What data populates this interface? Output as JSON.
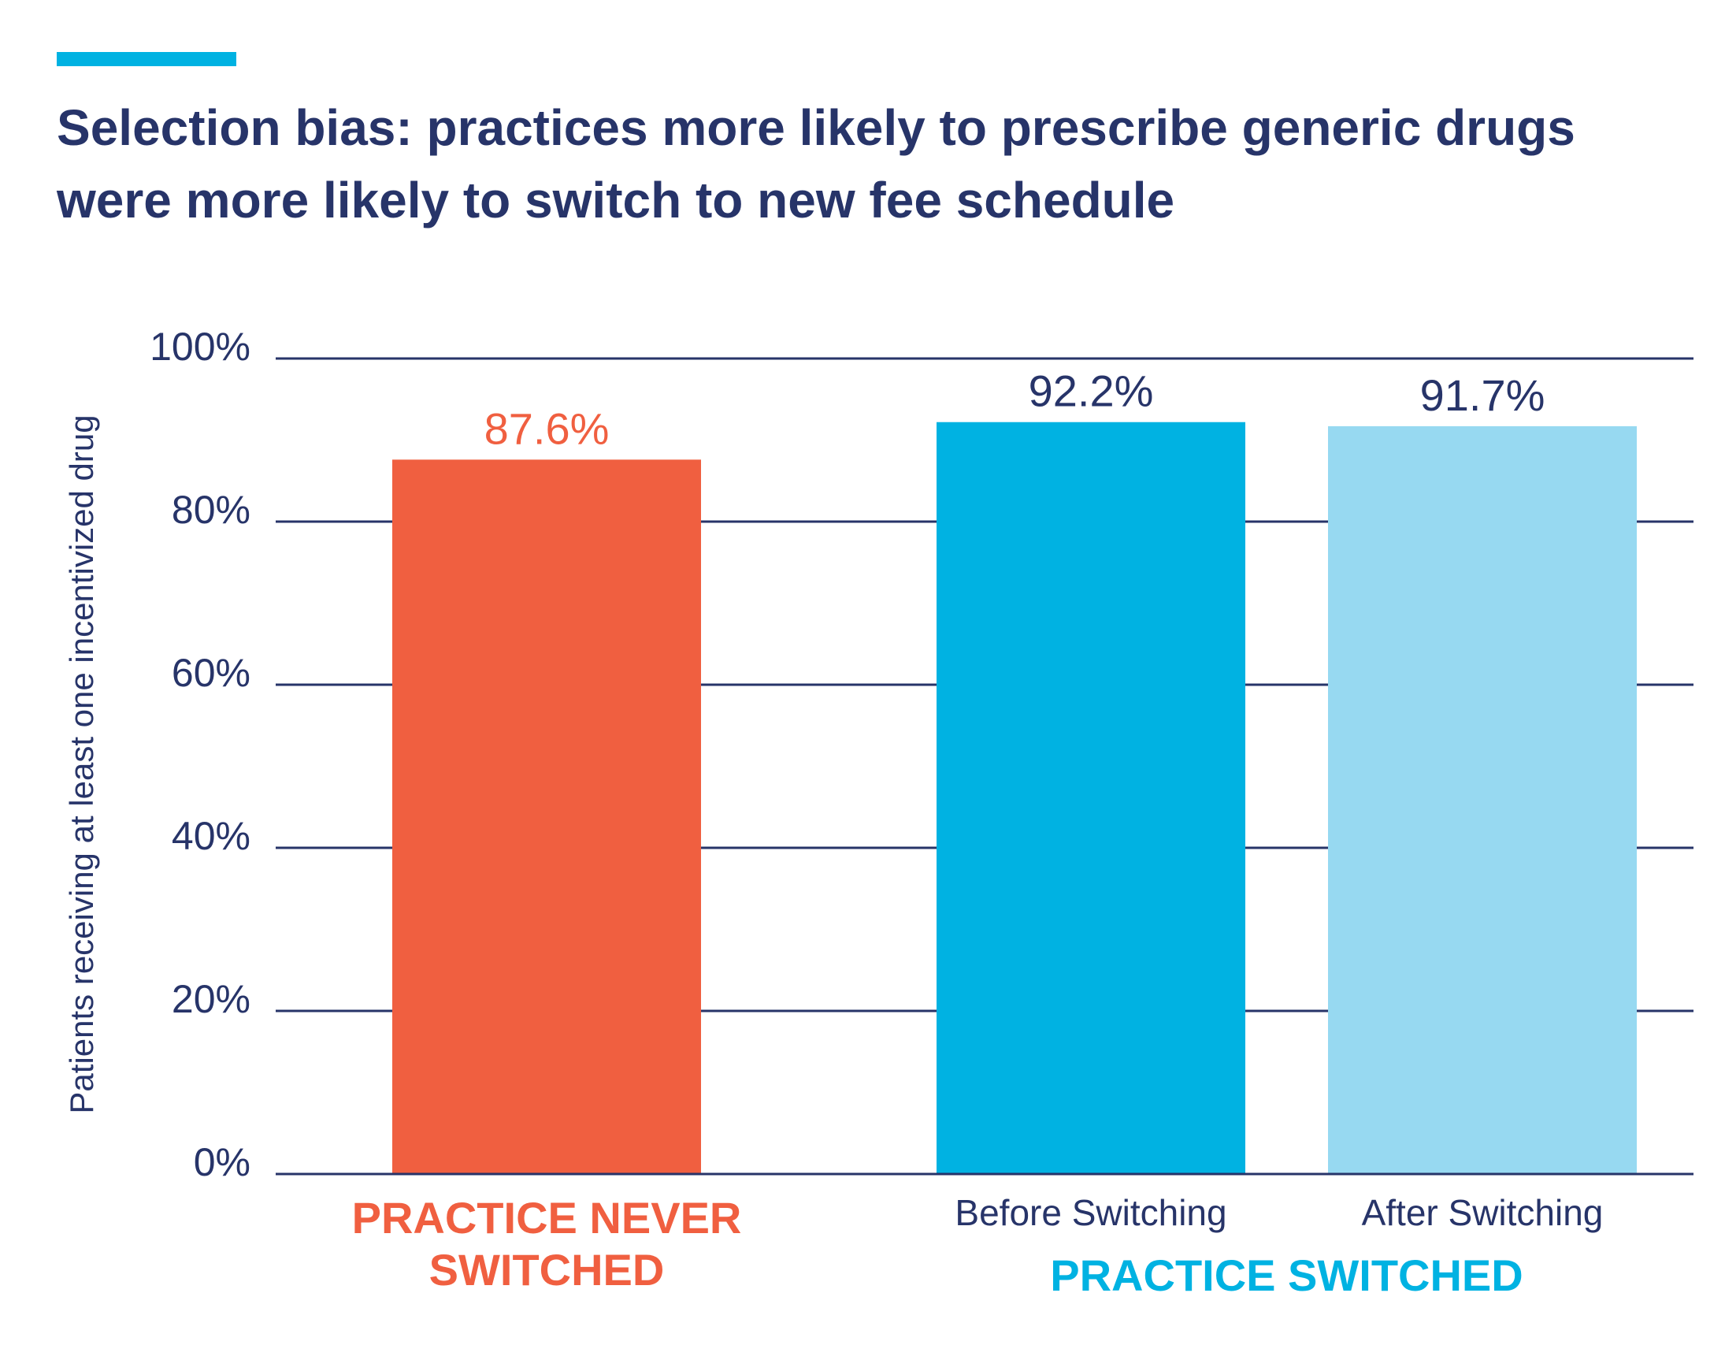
{
  "chart_data": {
    "type": "bar",
    "title": "Selection bias: practices more likely to prescribe generic drugs\nwere more likely to switch to new fee schedule",
    "ylabel": "Patients receiving at least one incentivized drug",
    "xlabel": "",
    "ylim": [
      0,
      100
    ],
    "yticks": [
      0,
      20,
      40,
      60,
      80,
      100
    ],
    "ytick_labels": [
      "0%",
      "20%",
      "40%",
      "60%",
      "80%",
      "100%"
    ],
    "grid": true,
    "bars": [
      {
        "category": "",
        "group": "PRACTICE NEVER SWITCHED",
        "value": 87.6,
        "label": "87.6%",
        "color": "#f05f40",
        "label_color": "#f05f40"
      },
      {
        "category": "Before Switching",
        "group": "PRACTICE SWITCHED",
        "value": 92.2,
        "label": "92.2%",
        "color": "#00b2e2",
        "label_color": "#273469"
      },
      {
        "category": "After Switching",
        "group": "PRACTICE SWITCHED",
        "value": 91.7,
        "label": "91.7%",
        "color": "#97d9f1",
        "label_color": "#273469"
      }
    ],
    "groups": [
      {
        "label": "PRACTICE NEVER\nSWITCHED",
        "color": "#f05f40"
      },
      {
        "label": "PRACTICE SWITCHED",
        "color": "#00b2e2"
      }
    ]
  },
  "colors": {
    "accent": "#00b2e2",
    "text": "#273469",
    "gridline": "#273469"
  }
}
